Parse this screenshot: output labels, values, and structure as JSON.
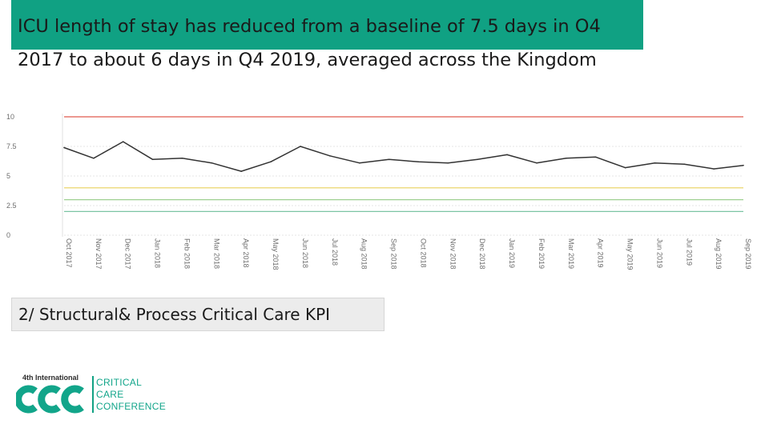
{
  "slide": {
    "title_line1": "ICU length of stay has reduced from a baseline of 7.5 days in O4",
    "title_line2": "2017 to about 6 days in Q4 2019, averaged across the Kingdom",
    "kpi_label": "2/ Structural& Process Critical Care KPI",
    "accent_color": "#10a183"
  },
  "logo": {
    "edition": "4th International",
    "words": [
      "CRITICAL",
      "CARE",
      "CONFERENCE"
    ],
    "color": "#12a58a"
  },
  "chart_data": {
    "type": "line",
    "x": [
      "Oct 2017",
      "Nov 2017",
      "Dec 2017",
      "Jan 2018",
      "Feb 2018",
      "Mar 2018",
      "Apr 2018",
      "May 2018",
      "Jun 2018",
      "Jul 2018",
      "Aug 2018",
      "Sep 2018",
      "Oct 2018",
      "Nov 2018",
      "Dec 2018",
      "Jan 2019",
      "Feb 2019",
      "Mar 2019",
      "Apr 2019",
      "May 2019",
      "Jun 2019",
      "Jul 2019",
      "Aug 2019",
      "Sep 2019"
    ],
    "series": [
      {
        "values": [
          7.4,
          6.5,
          7.9,
          6.4,
          6.5,
          6.1,
          5.4,
          6.2,
          7.5,
          6.7,
          6.1,
          6.4,
          6.2,
          6.1,
          6.4,
          6.8,
          6.1,
          6.5,
          6.6,
          5.7,
          6.1,
          6.0,
          5.6,
          5.9
        ],
        "color": "#333333"
      }
    ],
    "reference_lines": [
      {
        "value": 10,
        "color": "#e05a4d"
      },
      {
        "value": 4,
        "color": "#e8d15a"
      },
      {
        "value": 3,
        "color": "#9ed090"
      },
      {
        "value": 2,
        "color": "#7cc4a4"
      }
    ],
    "yticks": [
      "0",
      "2.5",
      "5",
      "7.5",
      "10"
    ],
    "ylim": [
      0,
      10
    ],
    "grid": true
  }
}
